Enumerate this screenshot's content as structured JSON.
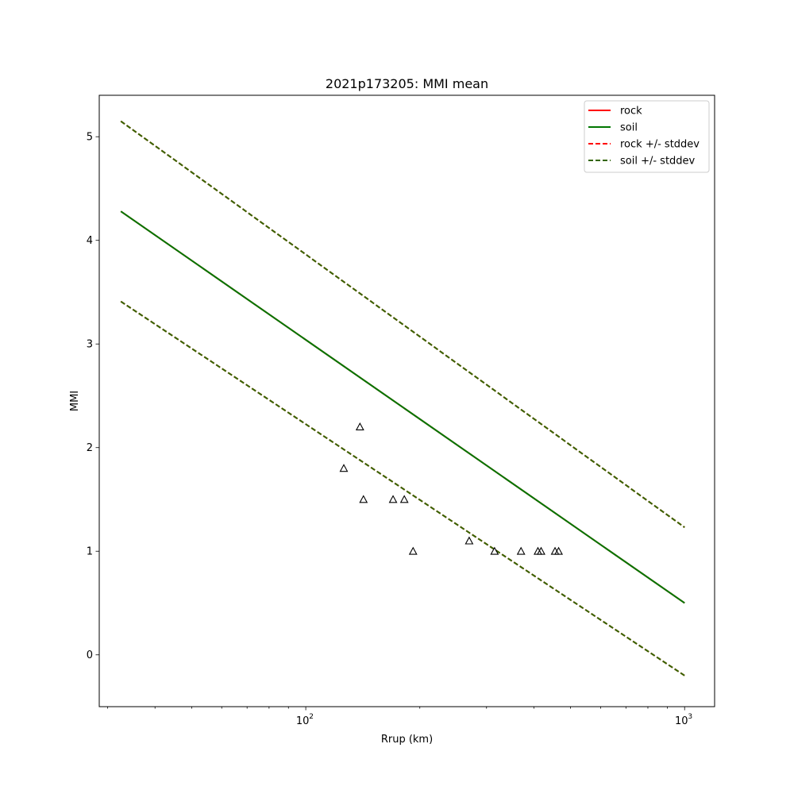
{
  "chart_data": {
    "type": "line",
    "title": "2021p173205: MMI mean",
    "xlabel": "Rrup (km)",
    "ylabel": "MMI",
    "xscale": "log",
    "xlim": [
      28.5,
      1200
    ],
    "ylim": [
      -0.5,
      5.4
    ],
    "grid": false,
    "legend_position": "top-right",
    "x_tick_labels": [
      {
        "value": 100,
        "base": "10",
        "exp": "2"
      },
      {
        "value": 1000,
        "base": "10",
        "exp": "3"
      }
    ],
    "y_ticks": [
      0,
      1,
      2,
      3,
      4,
      5
    ],
    "series": [
      {
        "name": "rock",
        "style": "solid",
        "color": "#ff0000",
        "x": [
          32.5,
          1000
        ],
        "y": [
          4.28,
          0.5
        ]
      },
      {
        "name": "soil",
        "style": "solid",
        "color": "#007700",
        "x": [
          32.5,
          1000
        ],
        "y": [
          4.28,
          0.5
        ]
      },
      {
        "name": "rock +/- stddev",
        "style": "dashed",
        "color": "#ff0000",
        "x": [
          32.5,
          1000
        ],
        "y_upper": [
          5.15,
          1.23
        ],
        "y_lower": [
          3.41,
          -0.2
        ]
      },
      {
        "name": "soil +/- stddev",
        "style": "dashed",
        "color": "#336600",
        "x": [
          32.5,
          1000
        ],
        "y_upper": [
          5.15,
          1.23
        ],
        "y_lower": [
          3.41,
          -0.2
        ]
      }
    ],
    "observations": {
      "marker": "triangle",
      "points": [
        {
          "x": 126,
          "y": 1.8
        },
        {
          "x": 139,
          "y": 2.2
        },
        {
          "x": 142,
          "y": 1.5
        },
        {
          "x": 170,
          "y": 1.5
        },
        {
          "x": 182,
          "y": 1.5
        },
        {
          "x": 192,
          "y": 1.0
        },
        {
          "x": 270,
          "y": 1.1
        },
        {
          "x": 315,
          "y": 1.0
        },
        {
          "x": 370,
          "y": 1.0
        },
        {
          "x": 410,
          "y": 1.0
        },
        {
          "x": 418,
          "y": 1.0
        },
        {
          "x": 455,
          "y": 1.0
        },
        {
          "x": 465,
          "y": 1.0
        }
      ]
    }
  }
}
